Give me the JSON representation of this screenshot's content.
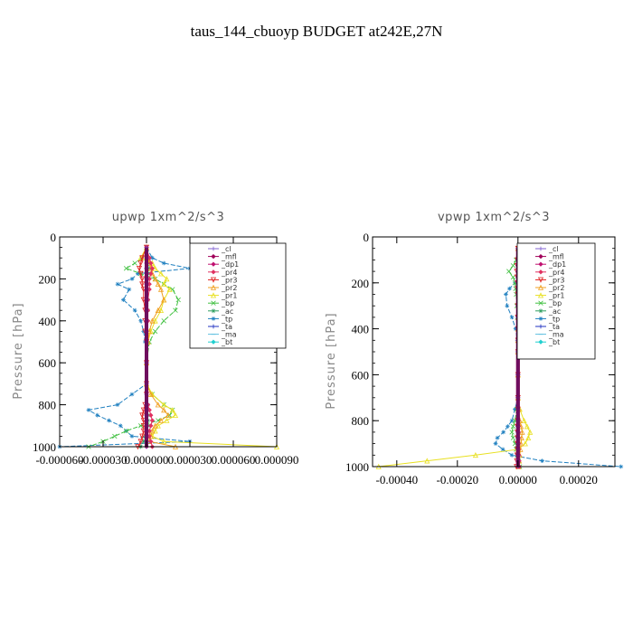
{
  "page": {
    "title": "taus_144_cbuoyp  BUDGET at242E,27N"
  },
  "chart_data": [
    {
      "type": "line",
      "title": "upwp   1xm^2/s^3",
      "ylabel": "Pressure [hPa]",
      "xlabel": "",
      "xlim": [
        -6e-05,
        9e-05
      ],
      "ylim": [
        1000,
        0
      ],
      "y_inverted": true,
      "xticks": [
        -6e-05,
        -3e-05,
        0.0,
        3e-05,
        6e-05,
        9e-05
      ],
      "xtick_labels": [
        "-0.000060",
        "-0.000030",
        "0.000000",
        "0.000030",
        "0.000060",
        "0.000090"
      ],
      "yticks": [
        0,
        200,
        400,
        600,
        800,
        1000
      ],
      "ytick_labels": [
        "0",
        "200",
        "400",
        "600",
        "800",
        "1000"
      ],
      "legend_position": "top-right",
      "levels": [
        50,
        100,
        125,
        150,
        175,
        200,
        225,
        250,
        300,
        350,
        400,
        450,
        500,
        600,
        700,
        750,
        800,
        825,
        850,
        875,
        900,
        925,
        950,
        975,
        1000
      ],
      "series": [
        {
          "name": "_cl",
          "color": "#8060d0",
          "marker": "plus",
          "values": [
            0,
            0,
            0,
            0,
            0,
            0,
            0,
            0,
            0,
            0,
            0,
            0,
            0,
            0,
            0,
            0,
            0,
            0,
            0,
            0,
            0,
            0,
            0,
            0,
            0
          ]
        },
        {
          "name": "_mfl",
          "color": "#a0005a",
          "marker": "diamond",
          "values": [
            0,
            0,
            0,
            0,
            0,
            0,
            0,
            0,
            0,
            0,
            0,
            0,
            0,
            0,
            0,
            0,
            0,
            0,
            0,
            0,
            0,
            0,
            0,
            0,
            0
          ]
        },
        {
          "name": "_dp1",
          "color": "#c01070",
          "marker": "diamond",
          "values": [
            0,
            0,
            0,
            0,
            0,
            0,
            0,
            0,
            0,
            0,
            0,
            0,
            0,
            0,
            0,
            0,
            0,
            0,
            0,
            0,
            0,
            0,
            0,
            0,
            0
          ]
        },
        {
          "name": "_pr4",
          "color": "#e03060",
          "marker": "diamond",
          "values": [
            0,
            2e-06,
            3e-06,
            4e-06,
            3e-06,
            2e-06,
            2e-06,
            2e-06,
            1e-06,
            1e-06,
            1e-06,
            0,
            0,
            0,
            0,
            0,
            1e-06,
            2e-06,
            3e-06,
            4e-06,
            3e-06,
            2e-06,
            2e-06,
            3e-06,
            4e-06
          ]
        },
        {
          "name": "_pr3",
          "color": "#e02020",
          "marker": "triangle-down",
          "values": [
            0,
            -3e-06,
            -4e-06,
            -5e-06,
            -4e-06,
            -3e-06,
            -3e-06,
            -2e-06,
            -2e-06,
            -1e-06,
            -1e-06,
            -1e-06,
            0,
            0,
            0,
            0,
            -1e-06,
            -2e-06,
            -3e-06,
            -2e-06,
            -2e-06,
            -2e-06,
            -3e-06,
            -4e-06,
            -6e-06
          ]
        },
        {
          "name": "_pr2",
          "color": "#f0a020",
          "marker": "triangle-up",
          "values": [
            0,
            1e-06,
            2e-06,
            3e-06,
            4e-06,
            6e-06,
            8e-06,
            1e-05,
            1.2e-05,
            8e-06,
            4e-06,
            2e-06,
            1e-06,
            0,
            0,
            3e-06,
            8e-06,
            1.2e-05,
            1.5e-05,
            1e-05,
            6e-06,
            4e-06,
            3e-06,
            2e-06,
            2e-05
          ]
        },
        {
          "name": "_pr1",
          "color": "#e8e020",
          "marker": "triangle-up",
          "values": [
            0,
            -4e-06,
            4e-06,
            6e-06,
            1e-05,
            1.4e-05,
            1.2e-05,
            1.6e-05,
            1.2e-05,
            1e-05,
            6e-06,
            3e-06,
            1e-06,
            0,
            0,
            4e-06,
            1.2e-05,
            1.8e-05,
            2e-05,
            1.4e-05,
            8e-06,
            6e-06,
            4e-06,
            1.2e-05,
            9e-05
          ]
        },
        {
          "name": "_bp",
          "color": "#40c040",
          "marker": "x",
          "values": [
            0,
            -3e-06,
            -8e-06,
            -1.4e-05,
            -4e-06,
            6e-06,
            1.2e-05,
            1.8e-05,
            2.2e-05,
            2e-05,
            1.2e-05,
            6e-06,
            2e-06,
            0,
            0,
            4e-06,
            1.2e-05,
            1.8e-05,
            1.6e-05,
            8e-06,
            -4e-06,
            -1.4e-05,
            -2.2e-05,
            -3e-05,
            -4e-05
          ]
        },
        {
          "name": "_ac",
          "color": "#30a060",
          "marker": "star",
          "values": [
            0,
            1e-06,
            1e-06,
            2e-06,
            1e-06,
            1e-06,
            1e-06,
            1e-06,
            1e-06,
            1e-06,
            0,
            0,
            0,
            0,
            0,
            0,
            1e-06,
            1e-06,
            1e-06,
            1e-06,
            1e-06,
            0,
            -1e-06,
            -2e-06,
            -4e-06
          ]
        },
        {
          "name": "_tp",
          "color": "#2080c0",
          "marker": "star",
          "values": [
            0,
            4e-06,
            1.2e-05,
            3e-05,
            -6e-06,
            -1e-05,
            -2e-05,
            -1.2e-05,
            -1.6e-05,
            -8e-06,
            -4e-06,
            -2e-06,
            -1e-06,
            0,
            0,
            -1e-05,
            -2e-05,
            -4e-05,
            -3.4e-05,
            -2.6e-05,
            -1.8e-05,
            -1.4e-05,
            -1e-05,
            3e-05,
            -6e-05
          ]
        },
        {
          "name": "_ta",
          "color": "#2030c0",
          "marker": "plus",
          "values": [
            0,
            0,
            0,
            0,
            0,
            0,
            0,
            0,
            0,
            0,
            0,
            0,
            0,
            0,
            0,
            0,
            0,
            0,
            0,
            0,
            0,
            0,
            0,
            0,
            0
          ]
        },
        {
          "name": "_ma",
          "color": "#60c0e0",
          "marker": "dash",
          "values": [
            0,
            0,
            0,
            0,
            0,
            0,
            0,
            0,
            0,
            0,
            0,
            0,
            0,
            0,
            0,
            0,
            0,
            0,
            0,
            0,
            0,
            0,
            0,
            0,
            0
          ]
        },
        {
          "name": "_bt",
          "color": "#20d0d0",
          "marker": "diamond",
          "values": [
            0,
            0,
            0,
            0,
            0,
            0,
            0,
            0,
            0,
            0,
            0,
            0,
            0,
            0,
            0,
            0,
            0,
            0,
            0,
            0,
            0,
            0,
            0,
            0,
            0
          ]
        }
      ]
    },
    {
      "type": "line",
      "title": "vpwp   1xm^2/s^3",
      "ylabel": "Pressure [hPa]",
      "xlabel": "",
      "xlim": [
        -0.00048,
        0.00032
      ],
      "ylim": [
        1000,
        0
      ],
      "y_inverted": true,
      "xticks": [
        -0.0004,
        -0.0002,
        0.0,
        0.0002
      ],
      "xtick_labels": [
        "-0.00040",
        "-0.00020",
        "0.00000",
        "0.00020"
      ],
      "yticks": [
        0,
        200,
        400,
        600,
        800,
        1000
      ],
      "ytick_labels": [
        "0",
        "200",
        "400",
        "600",
        "800",
        "1000"
      ],
      "legend_position": "top-right",
      "levels": [
        50,
        100,
        125,
        150,
        175,
        200,
        225,
        250,
        300,
        350,
        400,
        450,
        500,
        600,
        700,
        750,
        800,
        825,
        850,
        875,
        900,
        925,
        950,
        975,
        1000
      ],
      "series": [
        {
          "name": "_cl",
          "color": "#8060d0",
          "marker": "plus",
          "values": [
            0,
            0,
            0,
            0,
            0,
            0,
            0,
            0,
            0,
            0,
            0,
            0,
            0,
            0,
            0,
            0,
            0,
            0,
            0,
            0,
            0,
            0,
            0,
            0,
            0
          ]
        },
        {
          "name": "_mfl",
          "color": "#a0005a",
          "marker": "diamond",
          "values": [
            0,
            0,
            0,
            0,
            0,
            0,
            0,
            0,
            0,
            0,
            0,
            0,
            0,
            0,
            0,
            0,
            0,
            0,
            0,
            0,
            0,
            0,
            0,
            0,
            0
          ]
        },
        {
          "name": "_dp1",
          "color": "#c01070",
          "marker": "diamond",
          "values": [
            0,
            0,
            0,
            0,
            0,
            0,
            0,
            0,
            0,
            0,
            0,
            0,
            0,
            0,
            0,
            0,
            0,
            0,
            0,
            0,
            0,
            0,
            0,
            0,
            0
          ]
        },
        {
          "name": "_pr4",
          "color": "#e03060",
          "marker": "diamond",
          "values": [
            0,
            2e-06,
            3e-06,
            4e-06,
            3e-06,
            2e-06,
            2e-06,
            1e-06,
            1e-06,
            1e-06,
            0,
            0,
            0,
            0,
            0,
            0,
            1e-06,
            2e-06,
            2e-06,
            2e-06,
            2e-06,
            2e-06,
            3e-06,
            4e-06,
            5e-06
          ]
        },
        {
          "name": "_pr3",
          "color": "#e02020",
          "marker": "triangle-down",
          "values": [
            0,
            -2e-06,
            -3e-06,
            -4e-06,
            -3e-06,
            -2e-06,
            -2e-06,
            -1e-06,
            -1e-06,
            -1e-06,
            0,
            0,
            0,
            0,
            0,
            0,
            -1e-06,
            -2e-06,
            -2e-06,
            -2e-06,
            -2e-06,
            -2e-06,
            -3e-06,
            -4e-06,
            -5e-06
          ]
        },
        {
          "name": "_pr2",
          "color": "#f0a020",
          "marker": "triangle-up",
          "values": [
            0,
            4e-06,
            8e-06,
            1.2e-05,
            8e-06,
            6e-06,
            4e-06,
            3e-06,
            2e-06,
            1e-06,
            0,
            0,
            0,
            0,
            0,
            2e-06,
            6e-06,
            1e-05,
            1.4e-05,
            1.2e-05,
            1e-05,
            8e-06,
            6e-06,
            4e-06,
            2e-06
          ]
        },
        {
          "name": "_pr1",
          "color": "#e8e020",
          "marker": "triangle-up",
          "values": [
            0,
            8e-06,
            2e-05,
            3e-05,
            2.4e-05,
            1.6e-05,
            1e-05,
            6e-06,
            4e-06,
            2e-06,
            0,
            0,
            0,
            0,
            0,
            6e-06,
            2e-05,
            3e-05,
            4e-05,
            3.4e-05,
            2.4e-05,
            0,
            -0.00014,
            -0.0003,
            -0.00046
          ]
        },
        {
          "name": "_bp",
          "color": "#40c040",
          "marker": "x",
          "values": [
            0,
            -6e-06,
            -1.6e-05,
            -3e-05,
            -1.6e-05,
            -1e-05,
            -8e-06,
            -6e-06,
            -4e-06,
            -2e-06,
            0,
            0,
            0,
            0,
            0,
            -4e-06,
            -1e-05,
            -1.6e-05,
            -2e-05,
            -1.6e-05,
            -1e-05,
            -6e-06,
            -2e-06,
            2e-06,
            6e-06
          ]
        },
        {
          "name": "_ac",
          "color": "#30a060",
          "marker": "star",
          "values": [
            0,
            0,
            0,
            2e-06,
            1e-06,
            0,
            0,
            0,
            0,
            0,
            0,
            0,
            0,
            0,
            0,
            0,
            0,
            0,
            0,
            0,
            0,
            0,
            0,
            0,
            0
          ]
        },
        {
          "name": "_tp",
          "color": "#2080c0",
          "marker": "star",
          "values": [
            0,
            6e-06,
            2e-05,
            4e-05,
            1.8e-05,
            -1e-05,
            -2.8e-05,
            -4e-05,
            -3.6e-05,
            -2e-05,
            -8e-06,
            -2e-06,
            0,
            0,
            0,
            -1e-05,
            -2e-05,
            -3.4e-05,
            -4.8e-05,
            -6.8e-05,
            -7.4e-05,
            -5e-05,
            -2e-05,
            8e-05,
            0.00034
          ]
        },
        {
          "name": "_ta",
          "color": "#2030c0",
          "marker": "plus",
          "values": [
            0,
            0,
            0,
            0,
            0,
            0,
            0,
            0,
            0,
            0,
            0,
            0,
            0,
            0,
            0,
            0,
            0,
            0,
            0,
            0,
            0,
            0,
            0,
            0,
            0
          ]
        },
        {
          "name": "_ma",
          "color": "#60c0e0",
          "marker": "dash",
          "values": [
            0,
            0,
            0,
            0,
            0,
            0,
            0,
            0,
            0,
            0,
            0,
            0,
            0,
            0,
            0,
            0,
            0,
            0,
            0,
            0,
            0,
            0,
            0,
            0,
            0
          ]
        },
        {
          "name": "_bt",
          "color": "#20d0d0",
          "marker": "diamond",
          "values": [
            0,
            0,
            0,
            0,
            0,
            0,
            0,
            0,
            0,
            0,
            0,
            0,
            0,
            0,
            0,
            0,
            0,
            0,
            0,
            0,
            0,
            0,
            0,
            0,
            0
          ]
        }
      ]
    }
  ]
}
